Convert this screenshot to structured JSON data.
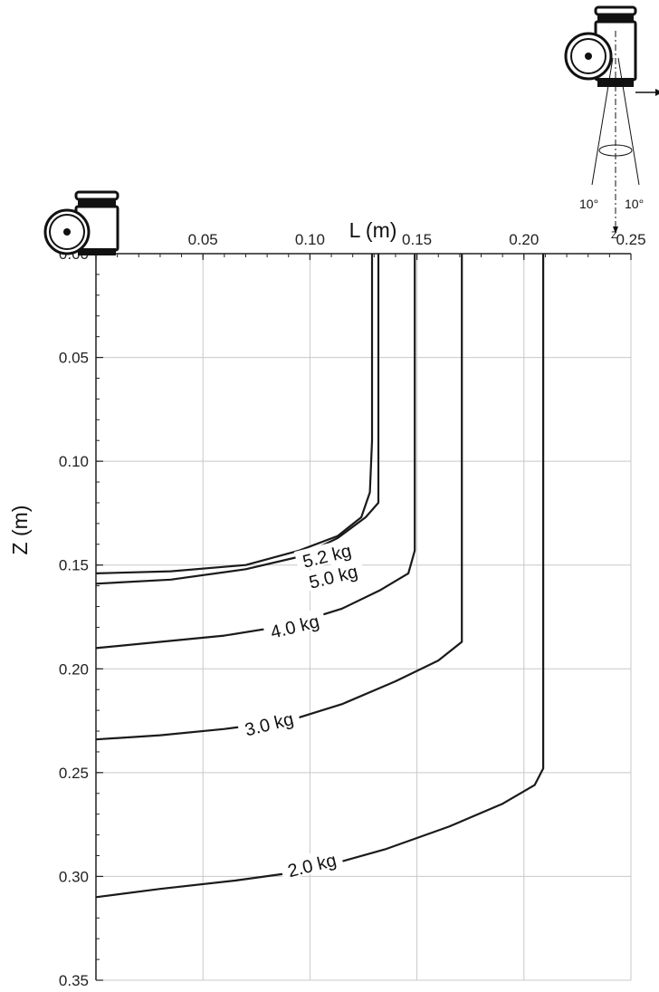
{
  "chart_data": {
    "type": "line",
    "xlabel": "L (m)",
    "ylabel": "Z (m)",
    "xlim": [
      0,
      0.25
    ],
    "ylim": [
      0,
      0.35
    ],
    "x_axis_position": "top",
    "y_axis_inverted": true,
    "grid": true,
    "x_ticks": [
      "0.00",
      "0.05",
      "0.10",
      "0.15",
      "0.20",
      "0.25"
    ],
    "y_ticks": [
      "0.00",
      "0.05",
      "0.10",
      "0.15",
      "0.20",
      "0.25",
      "0.30",
      "0.35"
    ],
    "series": [
      {
        "name": "5.2 kg",
        "label_text": "5.2 kg",
        "label_at": [
          0.108,
          0.146
        ],
        "label_angle": -14,
        "points": [
          [
            0.129,
            0.0
          ],
          [
            0.129,
            0.02
          ],
          [
            0.129,
            0.06
          ],
          [
            0.129,
            0.09
          ],
          [
            0.128,
            0.115
          ],
          [
            0.124,
            0.127
          ],
          [
            0.113,
            0.136
          ],
          [
            0.095,
            0.143
          ],
          [
            0.07,
            0.15
          ],
          [
            0.035,
            0.153
          ],
          [
            0.0,
            0.154
          ]
        ]
      },
      {
        "name": "5.0 kg",
        "label_text": "5.0 kg",
        "label_at": [
          0.111,
          0.156
        ],
        "label_angle": -14,
        "points": [
          [
            0.132,
            0.0
          ],
          [
            0.132,
            0.06
          ],
          [
            0.132,
            0.12
          ],
          [
            0.126,
            0.127
          ],
          [
            0.113,
            0.137
          ],
          [
            0.095,
            0.146
          ],
          [
            0.07,
            0.152
          ],
          [
            0.035,
            0.157
          ],
          [
            0.0,
            0.159
          ]
        ]
      },
      {
        "name": "4.0 kg",
        "label_text": "4.0 kg",
        "label_at": [
          0.093,
          0.18
        ],
        "label_angle": -14,
        "points": [
          [
            0.149,
            0.0
          ],
          [
            0.149,
            0.1
          ],
          [
            0.149,
            0.143
          ],
          [
            0.146,
            0.154
          ],
          [
            0.133,
            0.162
          ],
          [
            0.115,
            0.171
          ],
          [
            0.09,
            0.179
          ],
          [
            0.06,
            0.184
          ],
          [
            0.03,
            0.187
          ],
          [
            0.0,
            0.19
          ]
        ]
      },
      {
        "name": "3.0 kg",
        "label_text": "3.0 kg",
        "label_at": [
          0.081,
          0.227
        ],
        "label_angle": -14,
        "points": [
          [
            0.171,
            0.0
          ],
          [
            0.171,
            0.1
          ],
          [
            0.171,
            0.187
          ],
          [
            0.16,
            0.196
          ],
          [
            0.14,
            0.206
          ],
          [
            0.115,
            0.217
          ],
          [
            0.09,
            0.225
          ],
          [
            0.06,
            0.229
          ],
          [
            0.03,
            0.232
          ],
          [
            0.0,
            0.234
          ]
        ]
      },
      {
        "name": "2.0 kg",
        "label_text": "2.0 kg",
        "label_at": [
          0.101,
          0.295
        ],
        "label_angle": -14,
        "points": [
          [
            0.209,
            0.0
          ],
          [
            0.209,
            0.15
          ],
          [
            0.209,
            0.248
          ],
          [
            0.205,
            0.256
          ],
          [
            0.19,
            0.265
          ],
          [
            0.165,
            0.276
          ],
          [
            0.135,
            0.287
          ],
          [
            0.1,
            0.297
          ],
          [
            0.065,
            0.302
          ],
          [
            0.03,
            0.306
          ],
          [
            0.0,
            0.31
          ]
        ]
      }
    ],
    "annotations": [
      "10°",
      "10°",
      "Z"
    ]
  }
}
